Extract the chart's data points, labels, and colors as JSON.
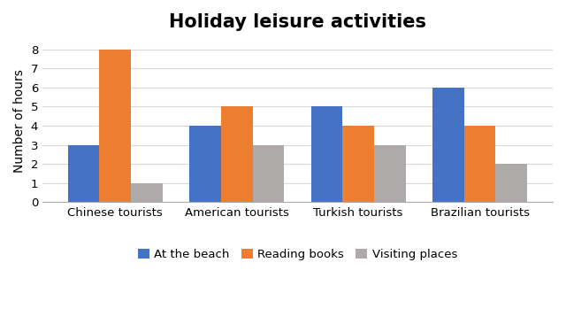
{
  "title": "Holiday leisure activities",
  "ylabel": "Number of hours",
  "categories": [
    "Chinese tourists",
    "American tourists",
    "Turkish tourists",
    "Brazilian tourists"
  ],
  "series": [
    {
      "label": "At the beach",
      "color": "#4472C4",
      "values": [
        3,
        4,
        5,
        6
      ]
    },
    {
      "label": "Reading books",
      "color": "#ED7D31",
      "values": [
        8,
        5,
        4,
        4
      ]
    },
    {
      "label": "Visiting places",
      "color": "#AEAAAA",
      "values": [
        1,
        3,
        3,
        2
      ]
    }
  ],
  "ylim": [
    0,
    8.5
  ],
  "yticks": [
    0,
    1,
    2,
    3,
    4,
    5,
    6,
    7,
    8
  ],
  "bar_width": 0.26,
  "background_color": "#FFFFFF",
  "grid_color": "#D9D9D9",
  "title_fontsize": 15,
  "axis_label_fontsize": 10,
  "tick_fontsize": 9.5,
  "legend_fontsize": 9.5
}
